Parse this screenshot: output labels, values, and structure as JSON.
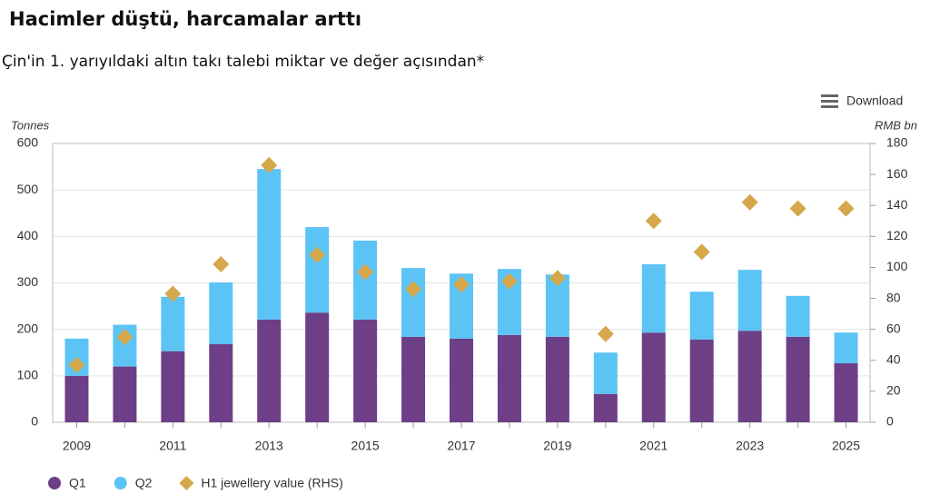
{
  "chart_data": {
    "type": "bar",
    "title": "Hacimler düştü, harcamalar arttı",
    "subtitle": "Çin'in 1. yarıyıldaki altın takı talebi miktar ve değer açısından*",
    "menu": "Download",
    "y_label": "Tonnes",
    "y2_label": "RMB bn",
    "categories": [
      "2009",
      null,
      "2011",
      null,
      "2013",
      null,
      "2015",
      null,
      "2017",
      null,
      "2019",
      null,
      "2021",
      null,
      "2023",
      null,
      "2025"
    ],
    "series": [
      {
        "name": "Q1",
        "type": "bar",
        "color": "#6d3f86",
        "values": [
          100,
          120,
          153,
          168,
          221,
          236,
          221,
          184,
          180,
          188,
          184,
          61,
          193,
          178,
          197,
          184,
          127
        ]
      },
      {
        "name": "Q2",
        "type": "bar",
        "color": "#5bc4f5",
        "values": [
          80,
          90,
          117,
          133,
          324,
          184,
          170,
          148,
          140,
          142,
          134,
          89,
          147,
          103,
          131,
          88,
          66
        ]
      },
      {
        "name": "H1 jewellery value (RHS)",
        "type": "scatter",
        "color": "#d4a84b",
        "axis": "y2",
        "values": [
          37,
          55,
          83,
          102,
          166,
          108,
          97,
          86,
          89,
          91,
          93,
          57,
          130,
          110,
          142,
          138,
          138
        ]
      }
    ],
    "ylim": [
      0,
      600
    ],
    "yticks": [
      0,
      100,
      200,
      300,
      400,
      500,
      600
    ],
    "y2lim": [
      0,
      180
    ],
    "y2ticks": [
      0,
      20,
      40,
      60,
      80,
      100,
      120,
      140,
      160,
      180
    ],
    "stacked": true,
    "grid": true
  }
}
